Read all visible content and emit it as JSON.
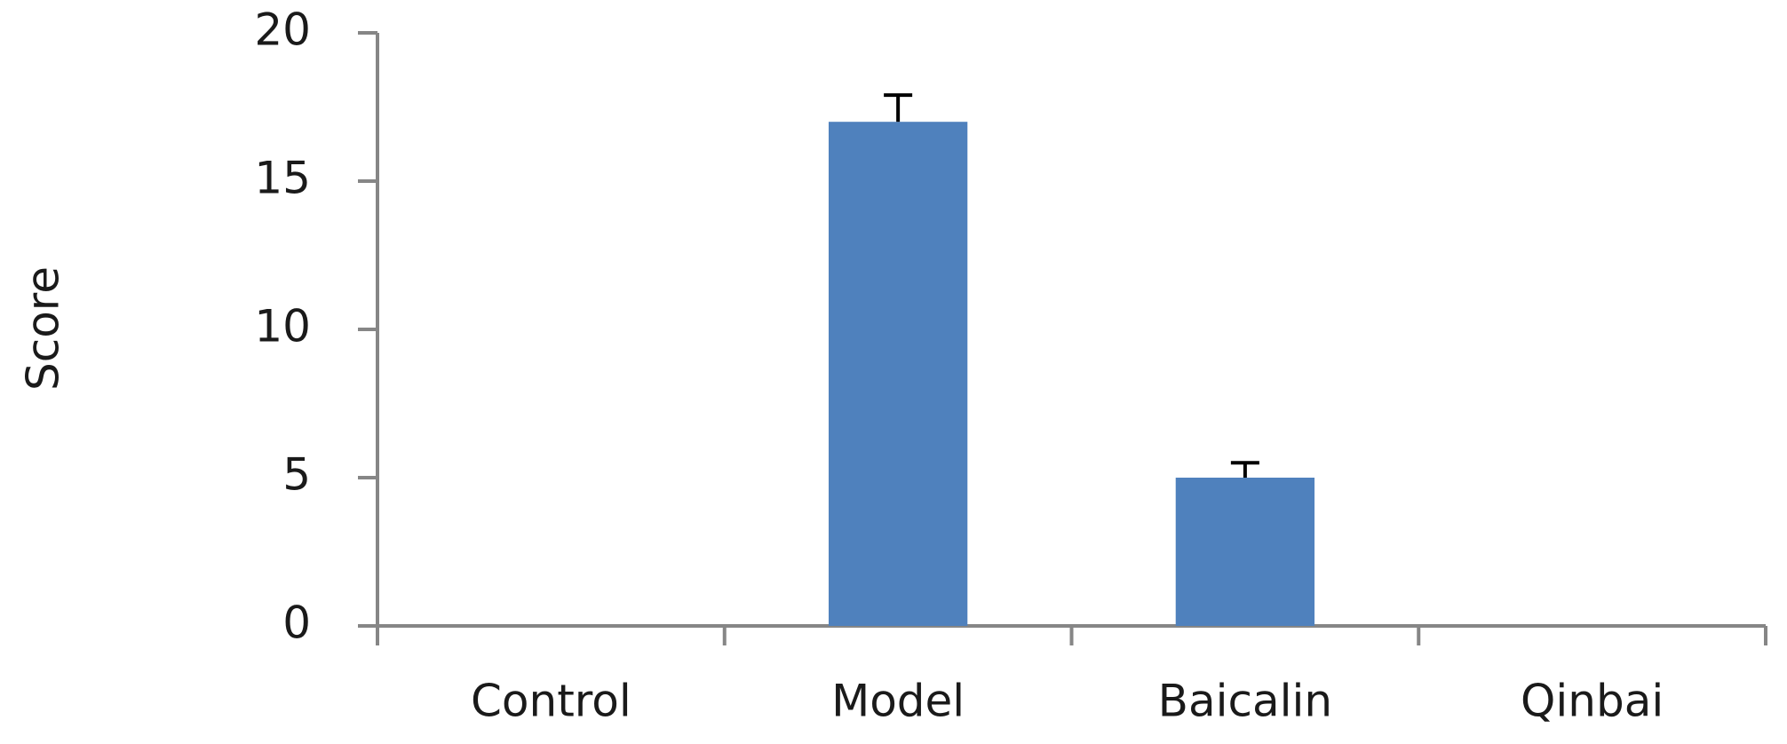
{
  "chart_data": {
    "type": "bar",
    "y_label": "Score",
    "categories": [
      "Control",
      "Model",
      "Baicalin",
      "Qinbai"
    ],
    "values": [
      0,
      17,
      5,
      0
    ],
    "errors": [
      0,
      0.9,
      0.5,
      0
    ],
    "color": "#4f81bd",
    "ylim": [
      0,
      20
    ],
    "yticks": [
      0,
      5,
      10,
      15,
      20
    ]
  }
}
